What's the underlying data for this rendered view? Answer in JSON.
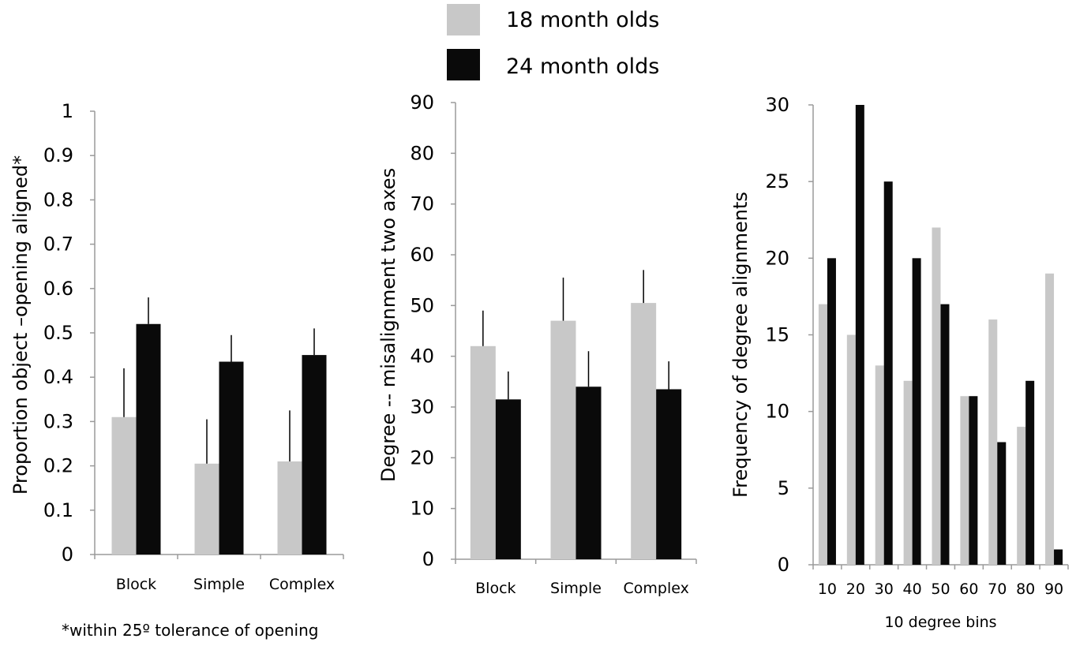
{
  "legend": {
    "items": [
      {
        "label": "18 month olds",
        "color": "#c8c8c8"
      },
      {
        "label": "24 month olds",
        "color": "#0a0a0a"
      }
    ]
  },
  "chart_data": [
    {
      "type": "bar",
      "ylabel": "Proportion object –opening aligned*",
      "xlabel": "",
      "ylim": [
        0,
        1
      ],
      "yticks": [
        "0",
        "0.1",
        "0.2",
        "0.3",
        "0.4",
        "0.5",
        "0.6",
        "0.7",
        "0.8",
        "0.9",
        "1"
      ],
      "categories": [
        "Block",
        "Simple",
        "Complex"
      ],
      "series": [
        {
          "name": "18 month olds",
          "values": [
            0.31,
            0.205,
            0.21
          ],
          "errors": [
            0.11,
            0.1,
            0.115
          ]
        },
        {
          "name": "24 month olds",
          "values": [
            0.52,
            0.435,
            0.45
          ],
          "errors": [
            0.06,
            0.06,
            0.06
          ]
        }
      ],
      "footnote": "*within 25º tolerance of opening"
    },
    {
      "type": "bar",
      "ylabel": "Degree --  misalignment two axes",
      "xlabel": "",
      "ylim": [
        0,
        90
      ],
      "yticks": [
        "0",
        "10",
        "20",
        "30",
        "40",
        "50",
        "60",
        "70",
        "80",
        "90"
      ],
      "categories": [
        "Block",
        "Simple",
        "Complex"
      ],
      "series": [
        {
          "name": "18 month olds",
          "values": [
            42,
            47,
            50.5
          ],
          "errors": [
            7,
            8.5,
            6.5
          ]
        },
        {
          "name": "24 month olds",
          "values": [
            31.5,
            34,
            33.5
          ],
          "errors": [
            5.5,
            7,
            5.5
          ]
        }
      ]
    },
    {
      "type": "bar",
      "ylabel": "Frequency of degree alignments",
      "xlabel": "10 degree bins",
      "ylim": [
        0,
        30
      ],
      "yticks": [
        "0",
        "5",
        "10",
        "15",
        "20",
        "25",
        "30"
      ],
      "categories": [
        "10",
        "20",
        "30",
        "40",
        "50",
        "60",
        "70",
        "80",
        "90"
      ],
      "series": [
        {
          "name": "18 month olds",
          "values": [
            17,
            15,
            13,
            12,
            22,
            11,
            16,
            9,
            19
          ]
        },
        {
          "name": "24 month olds",
          "values": [
            20,
            30,
            25,
            20,
            17,
            11,
            8,
            12,
            1
          ]
        }
      ]
    }
  ]
}
